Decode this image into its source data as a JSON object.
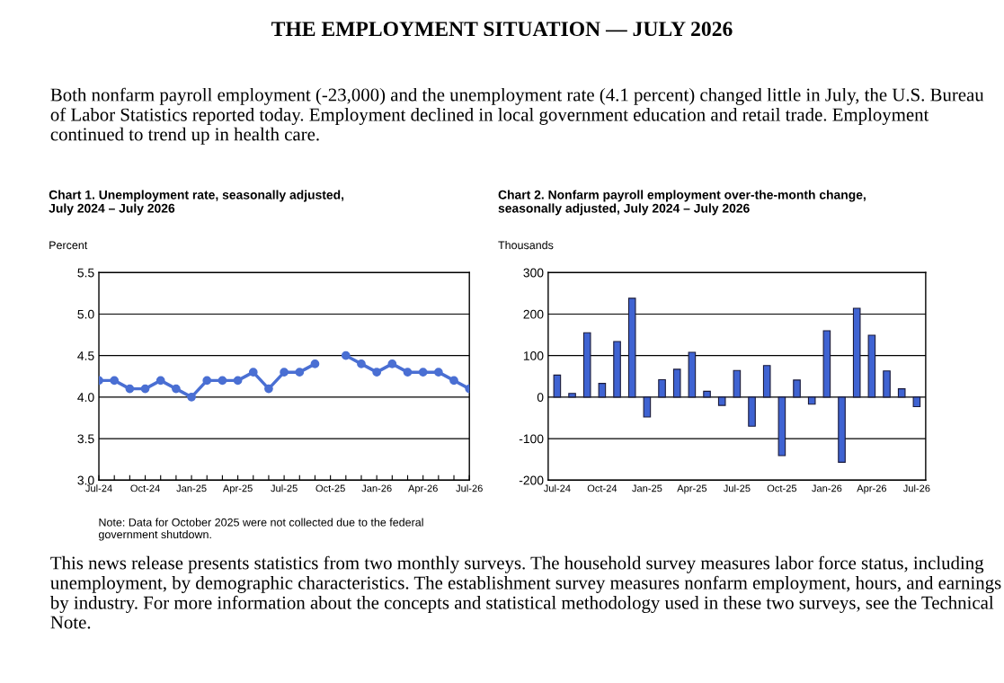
{
  "chart_data": [
    {
      "type": "line",
      "title": "Chart 1. Unemployment rate, seasonally adjusted,\nJuly 2024 – July 2026",
      "ylabel": "Percent",
      "categories": [
        "Jul-24",
        null,
        null,
        "Oct-24",
        null,
        null,
        "Jan-25",
        null,
        null,
        "Apr-25",
        null,
        null,
        "Jul-25",
        null,
        null,
        "Oct-25",
        null,
        null,
        "Jan-26",
        null,
        null,
        "Apr-26",
        null,
        null,
        "Jul-26"
      ],
      "series": [
        {
          "color": "#4a6fd3",
          "values": [
            4.2,
            4.2,
            4.1,
            4.1,
            4.2,
            4.1,
            4.0,
            4.2,
            4.2,
            4.2,
            4.3,
            4.1,
            4.3,
            4.3,
            4.4,
            null,
            4.5,
            4.4,
            4.3,
            4.4,
            4.3,
            4.3,
            4.3,
            4.2,
            4.1
          ]
        }
      ],
      "ylim": [
        3.0,
        5.5
      ],
      "yticks": [
        {
          "value": 3.0,
          "label": "3.0"
        },
        {
          "value": 3.5,
          "label": "3.5"
        },
        {
          "value": 4.0,
          "label": "4.0"
        },
        {
          "value": 4.5,
          "label": "4.5"
        },
        {
          "value": 5.0,
          "label": "5.0"
        },
        {
          "value": 5.5,
          "label": "5.5"
        }
      ],
      "grid": "y",
      "marker": "circle",
      "line_style": "solid",
      "legend": false,
      "annotations": [
        "THE EMPLOYMENT SITUATION — JULY 2026",
        "Both nonfarm payroll employment (-23,000) and the unemployment rate (4.1 percent) changed little in July, the U.S. Bureau of Labor Statistics reported today. Employment declined in local government education and retail trade. Employment continued to trend up in health care.",
        "Note: Data for October 2025 were not collected due to the federal\ngovernment shutdown.",
        "This news release presents statistics from two monthly surveys. The household survey measures labor force status, including unemployment, by demographic characteristics. The establishment survey measures nonfarm employment, hours, and earnings by industry. For more information about the concepts and statistical methodology used in these two surveys, see the Technical Note."
      ]
    },
    {
      "type": "bar",
      "title": "Chart 2. Nonfarm payroll employment over-the-month change,\nseasonally adjusted, July 2024 – July 2026",
      "ylabel": "Thousands",
      "categories": [
        "Jul-24",
        null,
        null,
        "Oct-24",
        null,
        null,
        "Jan-25",
        null,
        null,
        "Apr-25",
        null,
        null,
        "Jul-25",
        null,
        null,
        "Oct-25",
        null,
        null,
        "Jan-26",
        null,
        null,
        "Apr-26",
        null,
        null,
        "Jul-26"
      ],
      "series": [
        {
          "color": "#3f63d2",
          "values": [
            53,
            9,
            155,
            33,
            134,
            238,
            -48,
            42,
            67,
            108,
            14,
            -20,
            64,
            -70,
            76,
            -141,
            41,
            -17,
            160,
            -157,
            214,
            149,
            63,
            20,
            -23
          ]
        }
      ],
      "ylim": [
        -200,
        300
      ],
      "yticks": [
        -200,
        -100,
        0,
        100,
        200,
        300
      ],
      "grid": "y",
      "legend": false
    }
  ]
}
